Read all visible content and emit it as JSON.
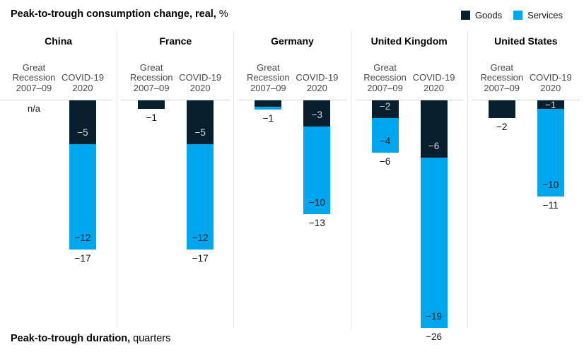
{
  "header": {
    "title_bold": "Peak-to-trough consumption change, real,",
    "title_unit": "%"
  },
  "legend": {
    "items": [
      {
        "name": "goods",
        "label": "Goods",
        "color": "#081f2e"
      },
      {
        "name": "services",
        "label": "Services",
        "color": "#00a7ef"
      }
    ]
  },
  "footer": {
    "title_bold": "Peak-to-trough duration,",
    "title_unit": "quarters"
  },
  "chart_data": {
    "type": "bar",
    "stacked": true,
    "orientation": "vertical-negative",
    "unit": "%",
    "series_names": [
      "Goods",
      "Services"
    ],
    "colors": {
      "Goods": "#081f2e",
      "Services": "#00a7ef"
    },
    "label_colors": {
      "Goods": "#d2d6d8",
      "Services": "#141414"
    },
    "column_labels": {
      "col1_lines": [
        "Great",
        "Recession",
        "2007–09"
      ],
      "col2_lines": [
        "COVID-19",
        "2020"
      ]
    },
    "panels": [
      {
        "country": "China",
        "bars": [
          {
            "period": "Great Recession 2007–09",
            "na": true,
            "na_label": "n/a"
          },
          {
            "period": "COVID-19 2020",
            "segments": [
              {
                "series": "Goods",
                "value": -5,
                "label": "−5"
              },
              {
                "series": "Services",
                "value": -12,
                "label": "−12"
              }
            ],
            "total": -17,
            "total_label": "−17"
          }
        ]
      },
      {
        "country": "France",
        "bars": [
          {
            "period": "Great Recession 2007–09",
            "segments": [
              {
                "series": "Goods",
                "value": -1
              }
            ],
            "total": -1,
            "total_label": "−1"
          },
          {
            "period": "COVID-19 2020",
            "segments": [
              {
                "series": "Goods",
                "value": -5,
                "label": "−5"
              },
              {
                "series": "Services",
                "value": -12,
                "label": "−12"
              }
            ],
            "total": -17,
            "total_label": "−17"
          }
        ]
      },
      {
        "country": "Germany",
        "bars": [
          {
            "period": "Great Recession 2007–09",
            "segments": [
              {
                "series": "Goods",
                "value": -0.75
              },
              {
                "series": "Services",
                "value": -0.3
              }
            ],
            "total": -1,
            "total_label": "−1"
          },
          {
            "period": "COVID-19 2020",
            "segments": [
              {
                "series": "Goods",
                "value": -3,
                "label": "−3"
              },
              {
                "series": "Services",
                "value": -10,
                "label": "−10"
              }
            ],
            "total": -13,
            "total_label": "−13"
          }
        ]
      },
      {
        "country": "United Kingdom",
        "bars": [
          {
            "period": "Great Recession 2007–09",
            "segments": [
              {
                "series": "Goods",
                "value": -2,
                "label": "−2"
              },
              {
                "series": "Services",
                "value": -4,
                "label": "−4"
              }
            ],
            "total": -6,
            "total_label": "−6"
          },
          {
            "period": "COVID-19 2020",
            "segments": [
              {
                "series": "Goods",
                "value": -6,
                "draw": -6.5,
                "label": "−6"
              },
              {
                "series": "Services",
                "value": -19,
                "draw": -19.5,
                "label": "−19"
              }
            ],
            "total": -26,
            "total_label": "−26"
          }
        ]
      },
      {
        "country": "United States",
        "bars": [
          {
            "period": "Great Recession 2007–09",
            "segments": [
              {
                "series": "Goods",
                "value": -2
              }
            ],
            "total": -2,
            "total_label": "−2"
          },
          {
            "period": "COVID-19 2020",
            "segments": [
              {
                "series": "Goods",
                "value": -1,
                "label": "−1"
              },
              {
                "series": "Services",
                "value": -10,
                "label": "−10"
              }
            ],
            "total": -11,
            "total_label": "−11"
          }
        ]
      }
    ]
  }
}
